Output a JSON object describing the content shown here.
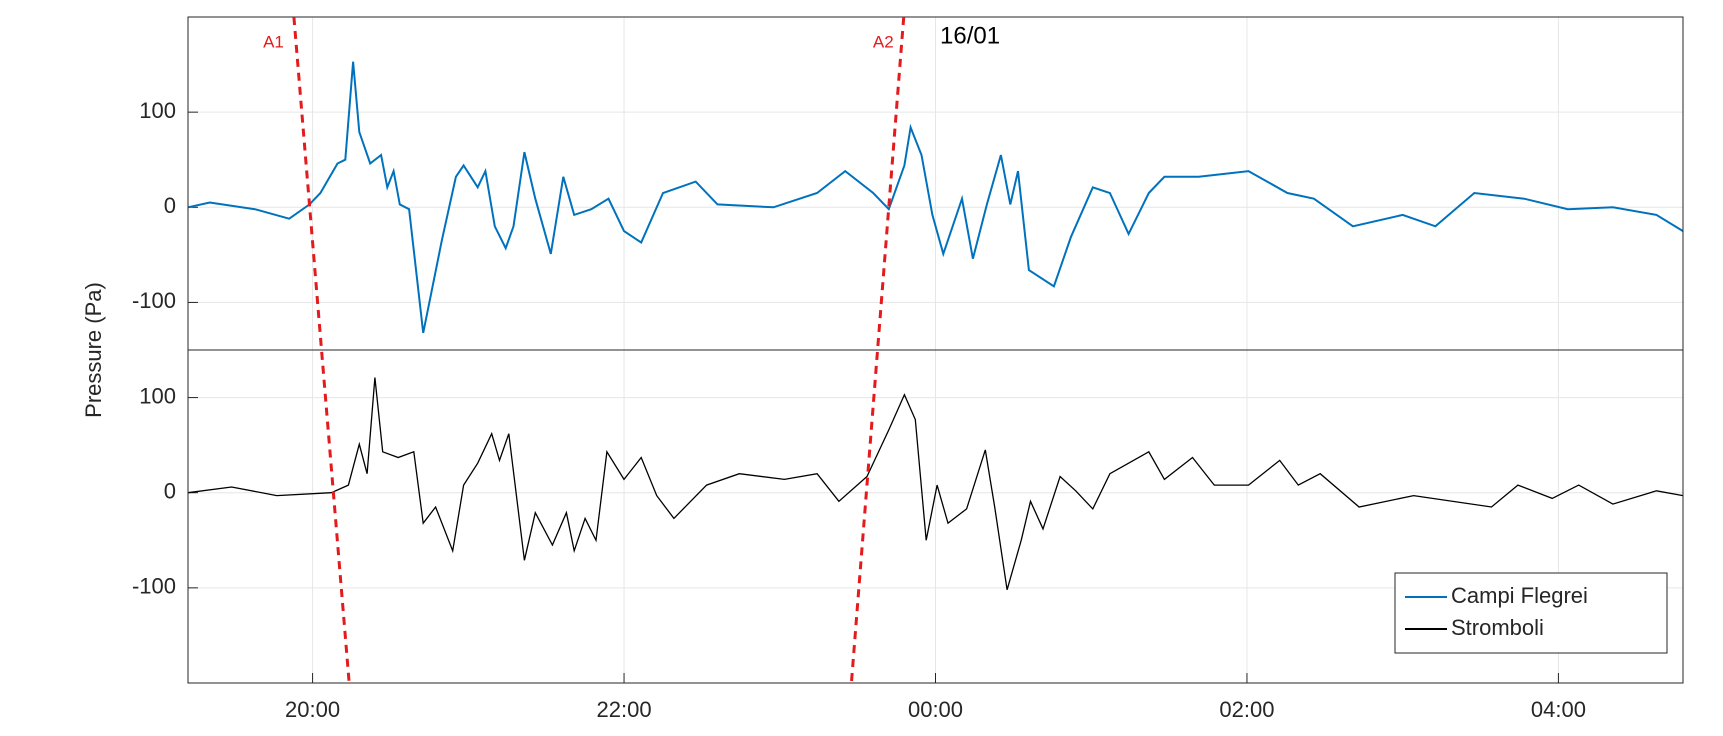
{
  "chart_data": {
    "type": "line",
    "ylabel": "Pressure (Pa)",
    "xlim": [
      19.2,
      28.8
    ],
    "xticks": [
      {
        "value": 20,
        "label": "20:00"
      },
      {
        "value": 22,
        "label": "22:00"
      },
      {
        "value": 24,
        "label": "00:00"
      },
      {
        "value": 26,
        "label": "02:00"
      },
      {
        "value": 28,
        "label": "04:00"
      }
    ],
    "grid": true,
    "legend": "lower right",
    "date_label": "16/01",
    "markers": [
      {
        "label": "A1",
        "x_top": 19.88,
        "x_bottom": 20.235,
        "color": "#e41a1c"
      },
      {
        "label": "A2",
        "x_top": 23.796,
        "x_bottom": 23.46,
        "color": "#e41a1c"
      }
    ],
    "panels": [
      {
        "ylim": [
          -150,
          200
        ],
        "yticks": [
          -100,
          0,
          100
        ],
        "series": [
          {
            "name": "Campi Flegrei",
            "color": "#0072bd",
            "x": [
              19.2,
              19.34,
              19.63,
              19.85,
              19.98,
              20.05,
              20.16,
              20.21,
              20.26,
              20.3,
              20.37,
              20.44,
              20.48,
              20.52,
              20.56,
              20.62,
              20.71,
              20.76,
              20.83,
              20.92,
              20.97,
              21.06,
              21.11,
              21.17,
              21.24,
              21.29,
              21.36,
              21.43,
              21.53,
              21.61,
              21.68,
              21.79,
              21.9,
              22.0,
              22.11,
              22.25,
              22.46,
              22.6,
              22.96,
              23.24,
              23.42,
              23.6,
              23.7,
              23.8,
              23.84,
              23.91,
              23.98,
              24.05,
              24.17,
              24.24,
              24.33,
              24.42,
              24.48,
              24.53,
              24.6,
              24.76,
              24.87,
              25.01,
              25.12,
              25.24,
              25.37,
              25.47,
              25.69,
              26.01,
              26.26,
              26.43,
              26.68,
              27.0,
              27.21,
              27.46,
              27.78,
              28.06,
              28.35,
              28.63,
              28.8
            ],
            "values": [
              0,
              5,
              -2,
              -12,
              3,
              15,
              46,
              50,
              153,
              79,
              46,
              55,
              21,
              38,
              3,
              -2,
              -132,
              -92,
              -35,
              32,
              44,
              21,
              38,
              -20,
              -43,
              -20,
              58,
              9,
              -49,
              32,
              -8,
              -2,
              9,
              -25,
              -37,
              15,
              27,
              3,
              0,
              15,
              38,
              15,
              -2,
              44,
              84,
              55,
              -8,
              -49,
              9,
              -54,
              3,
              55,
              3,
              38,
              -66,
              -83,
              -31,
              21,
              15,
              -28,
              15,
              32,
              32,
              38,
              15,
              9,
              -20,
              -8,
              -20,
              15,
              9,
              -2,
              0,
              -8,
              -25
            ]
          }
        ]
      },
      {
        "ylim": [
          -200,
          150
        ],
        "yticks": [
          -100,
          0,
          100
        ],
        "series": [
          {
            "name": "Stromboli",
            "color": "#000000",
            "x": [
              19.2,
              19.48,
              19.77,
              20.12,
              20.23,
              20.3,
              20.35,
              20.4,
              20.45,
              20.55,
              20.65,
              20.71,
              20.79,
              20.9,
              20.97,
              21.06,
              21.15,
              21.2,
              21.26,
              21.36,
              21.43,
              21.54,
              21.63,
              21.68,
              21.75,
              21.82,
              21.89,
              22.0,
              22.11,
              22.21,
              22.32,
              22.53,
              22.74,
              23.03,
              23.24,
              23.38,
              23.56,
              23.7,
              23.8,
              23.87,
              23.94,
              24.01,
              24.08,
              24.2,
              24.32,
              24.38,
              24.46,
              24.55,
              24.61,
              24.69,
              24.8,
              24.9,
              25.01,
              25.12,
              25.37,
              25.47,
              25.65,
              25.79,
              26.01,
              26.21,
              26.33,
              26.47,
              26.72,
              27.07,
              27.57,
              27.74,
              27.96,
              28.13,
              28.35,
              28.63,
              28.8
            ],
            "values": [
              0,
              6,
              -3,
              0,
              8,
              51,
              20,
              121,
              43,
              37,
              43,
              -32,
              -15,
              -61,
              8,
              31,
              62,
              34,
              62,
              -71,
              -21,
              -55,
              -21,
              -61,
              -27,
              -50,
              43,
              14,
              37,
              -3,
              -27,
              8,
              20,
              14,
              20,
              -9,
              17,
              66,
              103,
              77,
              -50,
              8,
              -32,
              -17,
              45,
              -15,
              -102,
              -50,
              -9,
              -38,
              17,
              2,
              -17,
              20,
              43,
              14,
              37,
              8,
              8,
              34,
              8,
              20,
              -15,
              -3,
              -15,
              8,
              -6,
              8,
              -12,
              2,
              -3
            ]
          }
        ]
      }
    ]
  }
}
